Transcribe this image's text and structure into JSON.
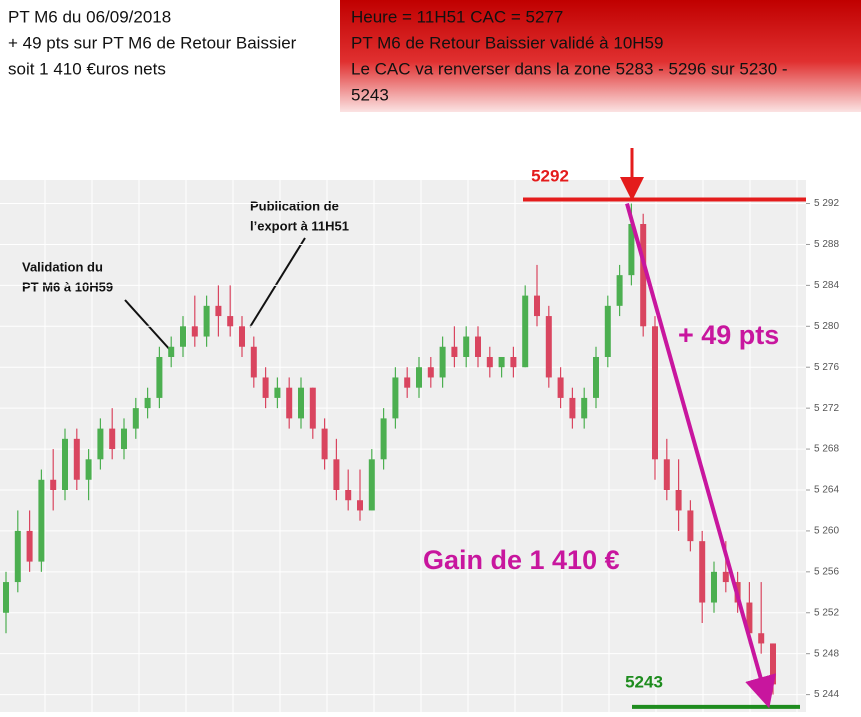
{
  "header": {
    "notes": [
      "PT M6 du 06/09/2018",
      "+ 49 pts sur PT M6 de Retour Baissier",
      "soit 1 410 €uros nets"
    ],
    "alert": [
      "Heure = 11H51 CAC = 5277",
      "PT M6 de Retour Baissier validé à 10H59",
      "Le CAC va renverser dans la zone 5283 - 5296 sur 5230 -",
      "5243"
    ]
  },
  "chart_data": {
    "type": "candlestick",
    "open": [
      5252,
      5255,
      5260,
      5257,
      5265,
      5264,
      5269,
      5265,
      5267,
      5270,
      5268,
      5270,
      5272,
      5273,
      5277,
      5278,
      5280,
      5279,
      5282,
      5281,
      5280,
      5278,
      5275,
      5273,
      5274,
      5271,
      5274,
      5270,
      5267,
      5264,
      5263,
      5262,
      5267,
      5271,
      5275,
      5274,
      5276,
      5275,
      5278,
      5277,
      5279,
      5277,
      5276,
      5277,
      5276,
      5283,
      5281,
      5275,
      5273,
      5271,
      5273,
      5277,
      5282,
      5285,
      5290,
      5280,
      5267,
      5264,
      5262,
      5259,
      5253,
      5256,
      5255,
      5253,
      5250,
      5249
    ],
    "high": [
      5256,
      5262,
      5262,
      5266,
      5268,
      5270,
      5270,
      5268,
      5271,
      5272,
      5271,
      5273,
      5274,
      5278,
      5279,
      5281,
      5283,
      5283,
      5284,
      5284,
      5281,
      5279,
      5276,
      5275,
      5275,
      5275,
      5274,
      5271,
      5269,
      5266,
      5266,
      5268,
      5272,
      5276,
      5276,
      5277,
      5277,
      5279,
      5280,
      5280,
      5280,
      5278,
      5277,
      5278,
      5284,
      5286,
      5282,
      5276,
      5274,
      5274,
      5278,
      5283,
      5286,
      5292,
      5291,
      5281,
      5269,
      5267,
      5263,
      5260,
      5257,
      5259,
      5256,
      5255,
      5255,
      5249
    ],
    "low": [
      5250,
      5254,
      5256,
      5256,
      5262,
      5263,
      5264,
      5263,
      5266,
      5267,
      5267,
      5269,
      5271,
      5272,
      5276,
      5277,
      5278,
      5278,
      5279,
      5279,
      5277,
      5274,
      5272,
      5272,
      5270,
      5270,
      5269,
      5266,
      5263,
      5262,
      5261,
      5262,
      5266,
      5270,
      5273,
      5273,
      5274,
      5274,
      5276,
      5276,
      5276,
      5275,
      5275,
      5275,
      5276,
      5280,
      5274,
      5272,
      5270,
      5270,
      5272,
      5276,
      5281,
      5284,
      5279,
      5265,
      5263,
      5260,
      5258,
      5251,
      5252,
      5254,
      5252,
      5249,
      5248,
      5244
    ],
    "close": [
      5255,
      5260,
      5257,
      5265,
      5264,
      5269,
      5265,
      5267,
      5270,
      5268,
      5270,
      5272,
      5273,
      5277,
      5278,
      5280,
      5279,
      5282,
      5281,
      5280,
      5278,
      5275,
      5273,
      5274,
      5271,
      5274,
      5270,
      5267,
      5264,
      5263,
      5262,
      5267,
      5271,
      5275,
      5274,
      5276,
      5275,
      5278,
      5277,
      5279,
      5277,
      5276,
      5277,
      5276,
      5283,
      5281,
      5275,
      5273,
      5271,
      5273,
      5277,
      5282,
      5285,
      5290,
      5280,
      5267,
      5264,
      5262,
      5259,
      5253,
      5256,
      5255,
      5253,
      5250,
      5249,
      5245
    ],
    "up_color": "#4caf50",
    "down_color": "#d9455f",
    "ylim": [
      5242.3,
      5294.3
    ],
    "yticks": [
      {
        "value": 5244,
        "label": "5 244"
      },
      {
        "value": 5248,
        "label": "5 248"
      },
      {
        "value": 5252,
        "label": "5 252"
      },
      {
        "value": 5256,
        "label": "5 256"
      },
      {
        "value": 5260,
        "label": "5 260"
      },
      {
        "value": 5264,
        "label": "5 264"
      },
      {
        "value": 5268,
        "label": "5 268"
      },
      {
        "value": 5272,
        "label": "5 272"
      },
      {
        "value": 5276,
        "label": "5 276"
      },
      {
        "value": 5280,
        "label": "5 280"
      },
      {
        "value": 5284,
        "label": "5 284"
      },
      {
        "value": 5288,
        "label": "5 288"
      },
      {
        "value": 5292,
        "label": "5 292"
      }
    ],
    "grid": true,
    "levels": [
      {
        "value": 5292,
        "color": "#e41c1c"
      },
      {
        "value": 5243,
        "color": "#1e8c1e"
      }
    ],
    "annotations": {
      "validation": [
        "Validation du",
        "PT M6 à 10H59"
      ],
      "publication": [
        "Publication de",
        "l’export à 11H51"
      ],
      "move": "+ 49 pts",
      "gain": "Gain de 1 410 €",
      "color": "#c8169e"
    }
  }
}
